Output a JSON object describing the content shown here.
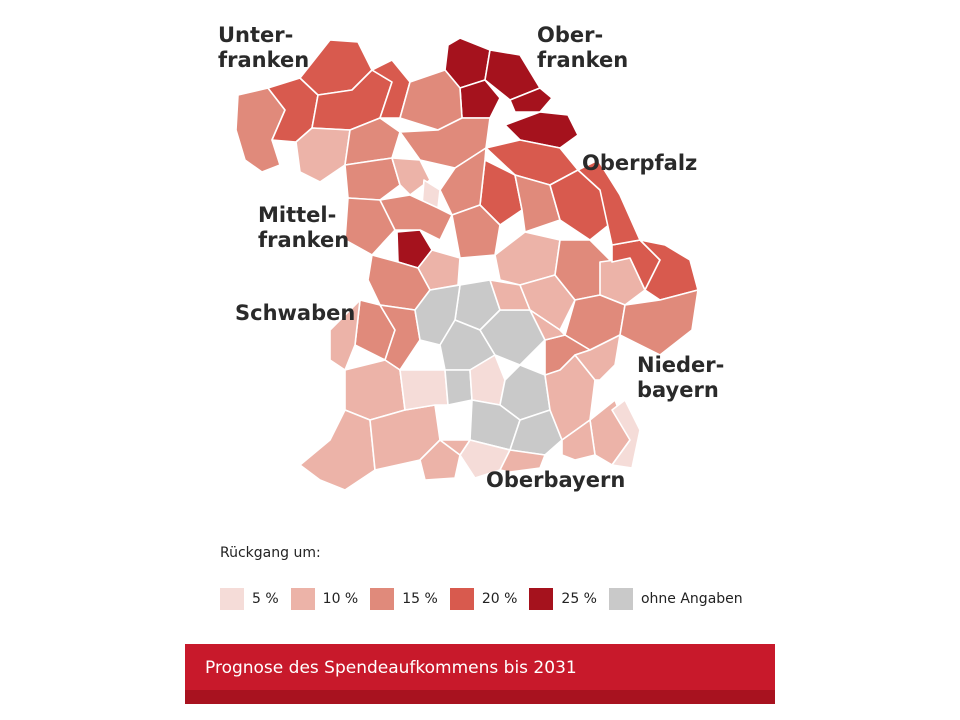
{
  "colors": {
    "c5": "#f5dcd8",
    "c10": "#ecb3a8",
    "c15": "#e08a7b",
    "c20": "#d85a4e",
    "c25": "#a5121d",
    "none": "#c9c9c9",
    "border": "#ffffff",
    "footer": "#c8192b"
  },
  "regions": {
    "unterfranken": [
      "Unter-",
      "franken"
    ],
    "oberfranken": [
      "Ober-",
      "franken"
    ],
    "oberpfalz": [
      "Oberpfalz"
    ],
    "mittelfranken": [
      "Mittel-",
      "franken"
    ],
    "schwaben": [
      "Schwaben"
    ],
    "niederbayern": [
      "Nieder-",
      "bayern"
    ],
    "oberbayern": [
      "Oberbayern"
    ]
  },
  "legend": {
    "title": "Rückgang um:",
    "items": [
      {
        "label": "5 %",
        "color": "#f5dcd8"
      },
      {
        "label": "10 %",
        "color": "#ecb3a8"
      },
      {
        "label": "15 %",
        "color": "#e08a7b"
      },
      {
        "label": "20 %",
        "color": "#d85a4e"
      },
      {
        "label": "25 %",
        "color": "#a5121d"
      },
      {
        "label": "ohne Angaben",
        "color": "#c9c9c9"
      }
    ]
  },
  "footer": {
    "title": "Prognose des Spendeaufkommens bis 2031"
  }
}
